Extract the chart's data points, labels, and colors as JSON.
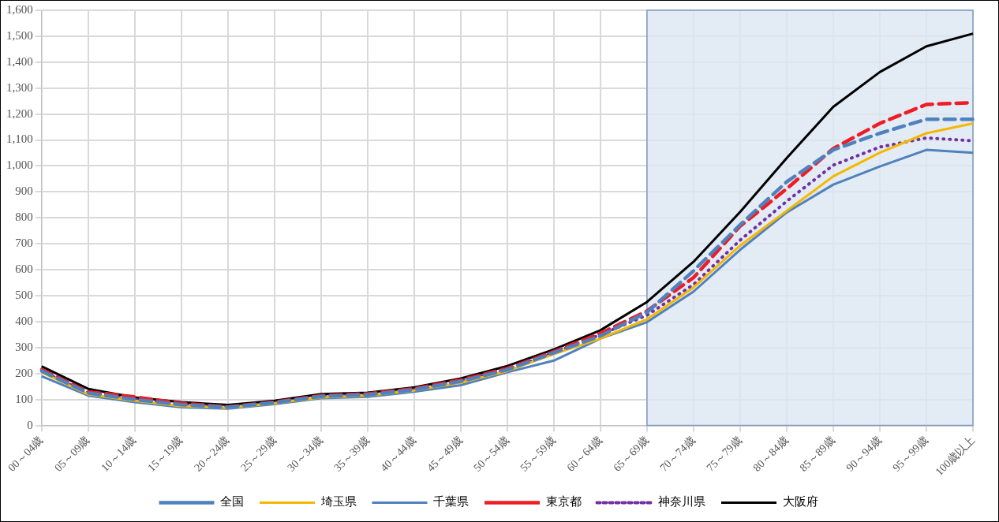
{
  "chart_data": {
    "type": "line",
    "categories": [
      "00～04歳",
      "05～09歳",
      "10～14歳",
      "15～19歳",
      "20～24歳",
      "25～29歳",
      "30～34歳",
      "35～39歳",
      "40～44歳",
      "45～49歳",
      "50～54歳",
      "55～59歳",
      "60～64歳",
      "65～69歳",
      "70～74歳",
      "75～79歳",
      "80～84歳",
      "85～89歳",
      "90～94歳",
      "95～99歳",
      "100歳以上"
    ],
    "series": [
      {
        "name": "全国",
        "color": "#4f81bd",
        "line_style": "dashed",
        "values": [
          210,
          125,
          100,
          80,
          70,
          88,
          112,
          118,
          138,
          170,
          215,
          280,
          345,
          436,
          596,
          773,
          939,
          1062,
          1126,
          1180,
          1180
        ]
      },
      {
        "name": "埼玉県",
        "color": "#f5b800",
        "line_style": "solid",
        "values": [
          205,
          120,
          95,
          75,
          68,
          85,
          108,
          115,
          135,
          165,
          210,
          275,
          335,
          409,
          532,
          693,
          827,
          960,
          1051,
          1126,
          1164
        ]
      },
      {
        "name": "千葉県",
        "color": "#4f81bd",
        "line_style": "solid",
        "values": [
          190,
          115,
          90,
          70,
          65,
          82,
          105,
          110,
          130,
          155,
          205,
          250,
          335,
          398,
          516,
          677,
          821,
          928,
          998,
          1062,
          1051
        ]
      },
      {
        "name": "東京都",
        "color": "#ee1c25",
        "line_style": "dashed",
        "values": [
          215,
          130,
          110,
          85,
          72,
          90,
          115,
          122,
          142,
          175,
          220,
          285,
          355,
          441,
          570,
          768,
          912,
          1067,
          1164,
          1237,
          1244
        ]
      },
      {
        "name": "神奈川県",
        "color": "#7030a0",
        "line_style": "dotted",
        "values": [
          210,
          125,
          100,
          80,
          70,
          88,
          110,
          118,
          138,
          170,
          215,
          280,
          350,
          425,
          543,
          714,
          864,
          1003,
          1073,
          1108,
          1097
        ]
      },
      {
        "name": "大阪府",
        "color": "#000000",
        "line_style": "solid",
        "values": [
          228,
          141,
          108,
          90,
          79,
          95,
          121,
          126,
          147,
          181,
          229,
          293,
          367,
          476,
          631,
          823,
          1030,
          1228,
          1362,
          1461,
          1510
        ]
      }
    ],
    "ylim": [
      0,
      1600
    ],
    "yticks": [
      0,
      100,
      200,
      300,
      400,
      500,
      600,
      700,
      800,
      900,
      {
        "value": 1000,
        "label": "1,000"
      },
      {
        "value": 1100,
        "label": "1,100"
      },
      {
        "value": 1200,
        "label": "1,200"
      },
      {
        "value": 1300,
        "label": "1,300"
      },
      {
        "value": 1400,
        "label": "1,400"
      },
      {
        "value": 1500,
        "label": "1,500"
      },
      {
        "value": 1600,
        "label": "1,600"
      }
    ],
    "grid": true,
    "legend": "bottom",
    "marker": "none",
    "bands": [
      {
        "axis": "x",
        "from": "65～69歳",
        "to": "100歳以上",
        "color": "#dce6f2"
      }
    ]
  }
}
